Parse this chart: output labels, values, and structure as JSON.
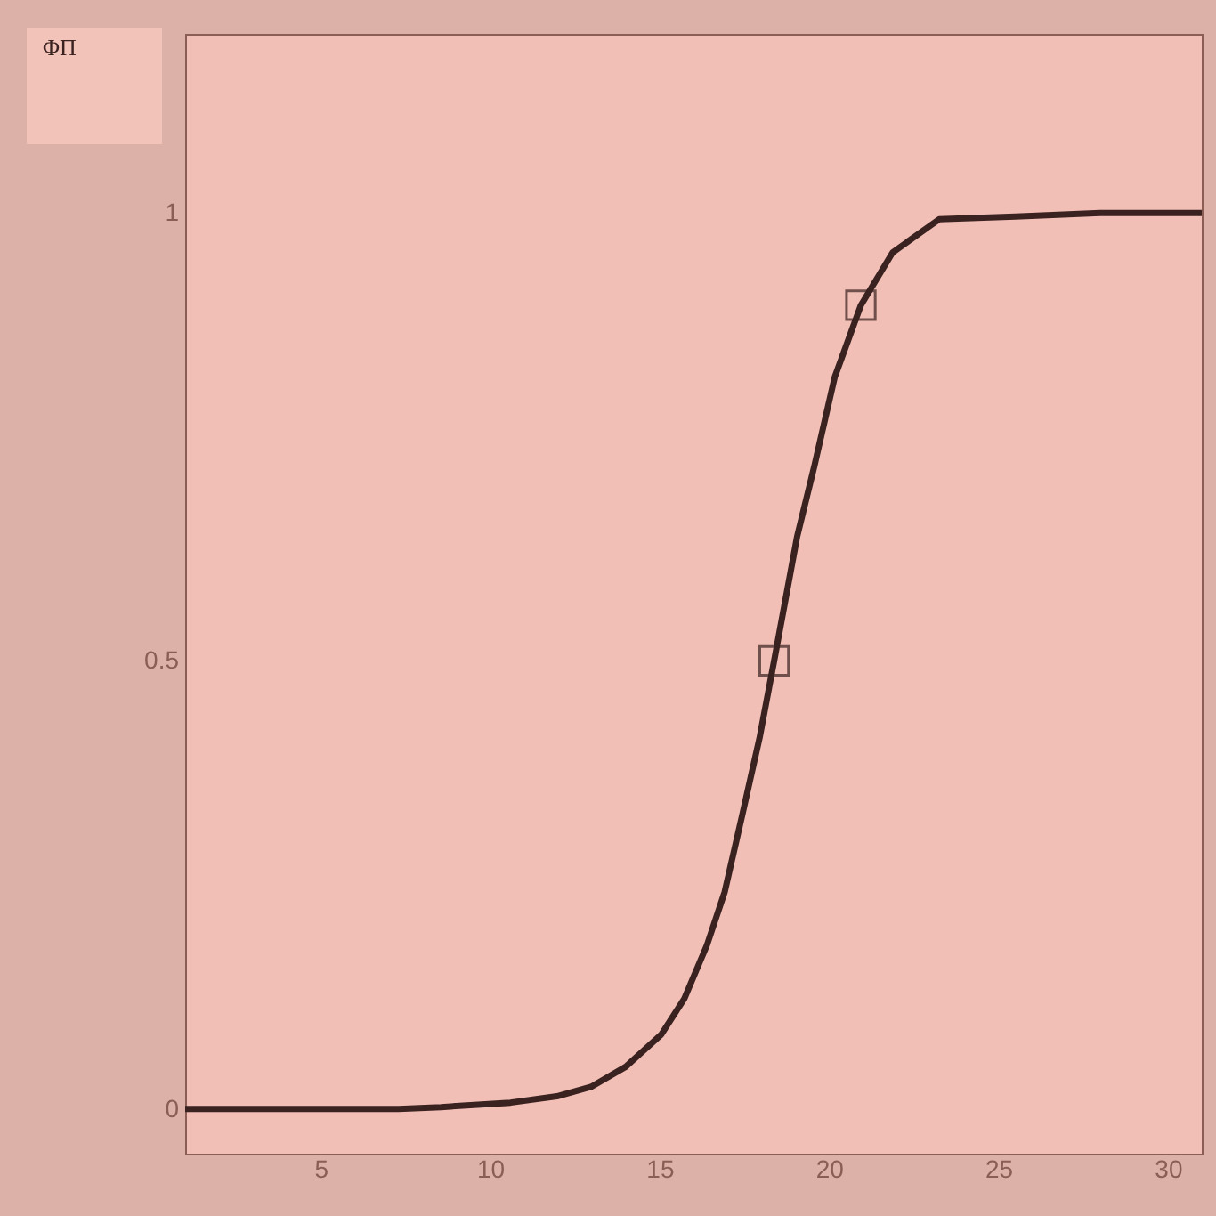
{
  "chart_data": {
    "type": "line",
    "ylabel": "ΦΠ",
    "series": [
      {
        "color": "#3a2220",
        "x": [
          1,
          4,
          7.3,
          8.55,
          10.6,
          11.97,
          13.0,
          14.0,
          15.05,
          15.73,
          16.4,
          16.92,
          17.44,
          17.95,
          18.38,
          19.06,
          19.57,
          20.17,
          20.94,
          21.88,
          23.25,
          25.5,
          28,
          31
        ],
        "values": [
          0,
          0,
          0,
          0.002,
          0.007,
          0.014,
          0.025,
          0.047,
          0.083,
          0.123,
          0.183,
          0.242,
          0.328,
          0.414,
          0.5,
          0.639,
          0.718,
          0.817,
          0.897,
          0.956,
          0.993,
          0.996,
          1.0,
          1.0
        ]
      },
      {
        "type": "scatter",
        "marker": "square",
        "color": "#3a2220",
        "x": [
          18.38,
          20.94
        ],
        "values": [
          0.5,
          0.897
        ]
      }
    ],
    "xlim": [
      1,
      31
    ],
    "xticks": [
      5,
      10,
      15,
      20,
      25,
      30
    ],
    "ylim": [
      -0.05,
      1.2
    ],
    "yticks": [
      0,
      0.5,
      1
    ],
    "grid": false
  }
}
